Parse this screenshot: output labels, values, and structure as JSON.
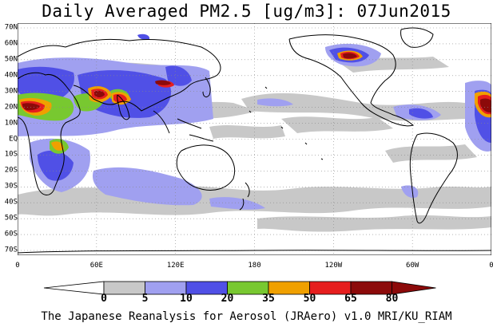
{
  "title": "Daily Averaged PM2.5 [ug/m3]: 07Jun2015",
  "footer": "The Japanese Reanalysis for Aerosol (JRAero) v1.0 MRI/KU_RIAM",
  "axes": {
    "lat_labels": [
      "70N",
      "60N",
      "50N",
      "40N",
      "30N",
      "20N",
      "10N",
      "EQ",
      "10S",
      "20S",
      "30S",
      "40S",
      "50S",
      "60S",
      "70S"
    ],
    "lon_labels": [
      "0",
      "60E",
      "120E",
      "180",
      "120W",
      "60W",
      "0"
    ]
  },
  "colorbar": {
    "labels": [
      "0",
      "5",
      "10",
      "20",
      "35",
      "50",
      "65",
      "80"
    ],
    "colors": [
      "#ffffff",
      "#c8c8c8",
      "#a0a0f0",
      "#5050e6",
      "#78c830",
      "#f0a000",
      "#e61e1e",
      "#8c0a0a"
    ]
  },
  "land_color": "#000000",
  "ocean_color": "#ffffff"
}
